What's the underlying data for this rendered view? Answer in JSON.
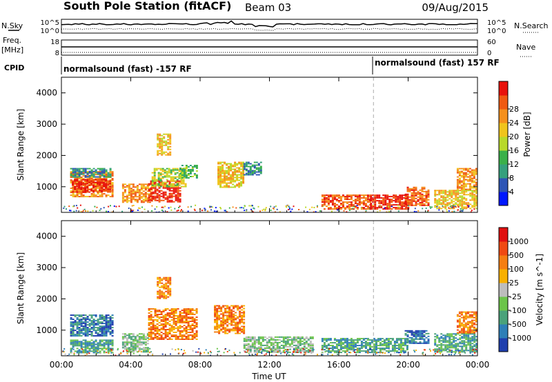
{
  "header": {
    "station": "South Pole Station (fitACF)",
    "beam": "Beam 03",
    "date": "09/Aug/2015"
  },
  "noise_panel": {
    "left_label": "N.Sky",
    "right_label": "N.Search",
    "left_ticks": [
      "10^5",
      "10^0"
    ],
    "right_ticks": [
      "10^5",
      "10^0"
    ]
  },
  "freq_panel": {
    "left_label_1": "Freq.",
    "left_label_2": "[MHz]",
    "right_label": "Nave",
    "left_ticks": [
      "18",
      "8"
    ],
    "right_ticks": [
      "60",
      "0"
    ]
  },
  "cpid_panel": {
    "label": "CPID",
    "mode_1": "normalsound (fast) -157 RF",
    "mode_2": "normalsound (fast) 157 RF"
  },
  "chart_data": [
    {
      "type": "heatmap",
      "name": "power",
      "ylabel": "Slant Range [km]",
      "xlabel": "",
      "x_ticks": [
        "00:00",
        "04:00",
        "08:00",
        "12:00",
        "16:00",
        "20:00",
        "00:00"
      ],
      "y_ticks": [
        "1000",
        "2000",
        "3000",
        "4000"
      ],
      "x_range_hours": [
        0,
        24
      ],
      "ylim": [
        180,
        4500
      ],
      "mode_change_hour": 18,
      "colorbar": {
        "label": "Power [dB]",
        "ticks": [
          "4",
          "8",
          "12",
          "16",
          "20",
          "24",
          "28"
        ],
        "colors": [
          "#0018ff",
          "#2e55b5",
          "#35a07d",
          "#3ab04a",
          "#b8d92a",
          "#f0c41c",
          "#f5901c",
          "#f05a12",
          "#e8120c"
        ]
      },
      "regions": [
        {
          "t0": 0.5,
          "t1": 3.0,
          "r0": 700,
          "r1": 1500,
          "level": 6
        },
        {
          "t0": 0.5,
          "t1": 2.8,
          "r0": 1300,
          "r1": 1600,
          "level": 2
        },
        {
          "t0": 0.6,
          "t1": 2.8,
          "r0": 850,
          "r1": 1250,
          "level": 8
        },
        {
          "t0": 3.5,
          "t1": 5.2,
          "r0": 500,
          "r1": 1100,
          "level": 6
        },
        {
          "t0": 5.0,
          "t1": 6.8,
          "r0": 500,
          "r1": 1200,
          "level": 8
        },
        {
          "t0": 5.2,
          "t1": 7.2,
          "r0": 1000,
          "r1": 1600,
          "level": 4
        },
        {
          "t0": 6.8,
          "t1": 7.8,
          "r0": 1300,
          "r1": 1700,
          "level": 3
        },
        {
          "t0": 5.5,
          "t1": 6.3,
          "r0": 2000,
          "r1": 2700,
          "level": 5
        },
        {
          "t0": 9.0,
          "t1": 10.5,
          "r0": 1000,
          "r1": 1800,
          "level": 5
        },
        {
          "t0": 10.5,
          "t1": 11.5,
          "r0": 1400,
          "r1": 1800,
          "level": 2
        },
        {
          "t0": 15.0,
          "t1": 17.8,
          "r0": 300,
          "r1": 750,
          "level": 7
        },
        {
          "t0": 17.8,
          "t1": 20.0,
          "r0": 300,
          "r1": 750,
          "level": 8
        },
        {
          "t0": 19.8,
          "t1": 21.2,
          "r0": 400,
          "r1": 1000,
          "level": 7
        },
        {
          "t0": 21.5,
          "t1": 24.0,
          "r0": 300,
          "r1": 900,
          "level": 5
        },
        {
          "t0": 22.8,
          "t1": 24.0,
          "r0": 900,
          "r1": 1600,
          "level": 6
        }
      ]
    },
    {
      "type": "heatmap",
      "name": "velocity",
      "ylabel": "Slant Range [km]",
      "xlabel": "Time UT",
      "x_ticks": [
        "00:00",
        "04:00",
        "08:00",
        "12:00",
        "16:00",
        "20:00",
        "00:00"
      ],
      "y_ticks": [
        "1000",
        "2000",
        "3000",
        "4000"
      ],
      "x_range_hours": [
        0,
        24
      ],
      "ylim": [
        180,
        4500
      ],
      "mode_change_hour": 18,
      "colorbar": {
        "label": "Velocity [m s^-1]",
        "ticks": [
          "1000",
          "500",
          "100",
          "25",
          "-25",
          "-100",
          "-500",
          "-1000"
        ],
        "colors": [
          "#1f3fae",
          "#2e7fb7",
          "#4aa27a",
          "#6cc44a",
          "#bdbdbd",
          "#f8b000",
          "#f57e12",
          "#f04a12",
          "#e01010"
        ]
      },
      "regions": [
        {
          "t0": 0.5,
          "t1": 3.0,
          "r0": 800,
          "r1": 1500,
          "level": 1
        },
        {
          "t0": 0.5,
          "t1": 3.0,
          "r0": 300,
          "r1": 700,
          "level": 2
        },
        {
          "t0": 3.5,
          "t1": 5.0,
          "r0": 300,
          "r1": 900,
          "level": 3
        },
        {
          "t0": 5.0,
          "t1": 7.8,
          "r0": 700,
          "r1": 1700,
          "level": 6
        },
        {
          "t0": 5.5,
          "t1": 6.3,
          "r0": 2000,
          "r1": 2700,
          "level": 6
        },
        {
          "t0": 8.8,
          "t1": 10.5,
          "r0": 900,
          "r1": 1800,
          "level": 6
        },
        {
          "t0": 10.5,
          "t1": 14.5,
          "r0": 300,
          "r1": 800,
          "level": 3
        },
        {
          "t0": 15.0,
          "t1": 20.0,
          "r0": 300,
          "r1": 750,
          "level": 2
        },
        {
          "t0": 19.8,
          "t1": 21.2,
          "r0": 600,
          "r1": 1000,
          "level": 1
        },
        {
          "t0": 21.5,
          "t1": 24.0,
          "r0": 300,
          "r1": 900,
          "level": 2
        },
        {
          "t0": 22.8,
          "t1": 24.0,
          "r0": 900,
          "r1": 1600,
          "level": 6
        }
      ]
    }
  ]
}
